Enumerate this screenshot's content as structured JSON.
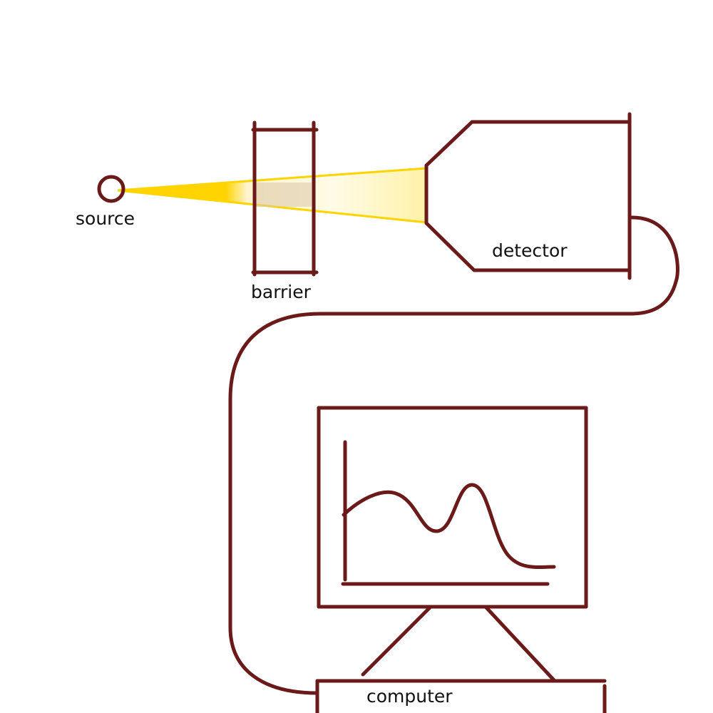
{
  "colors": {
    "ink": "#6b1a1a",
    "beam": "#ffd400",
    "beam_light": "#fff6c2",
    "background": "#ffffff"
  },
  "labels": {
    "source": "source",
    "barrier": "barrier",
    "detector": "detector",
    "computer": "computer"
  },
  "screen_plot": {
    "description_icon": "spectrum-curve-icon"
  }
}
